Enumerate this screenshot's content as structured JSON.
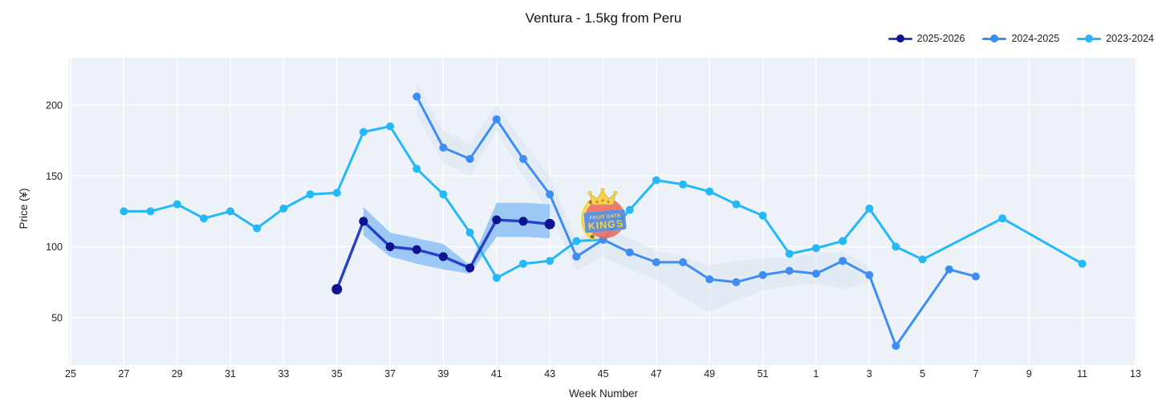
{
  "chart_data": {
    "type": "line",
    "title": "Ventura - 1.5kg from Peru",
    "xlabel": "Week Number",
    "ylabel": "Price (¥)",
    "x_tick_labels": [
      25,
      27,
      29,
      31,
      33,
      35,
      37,
      39,
      41,
      43,
      45,
      47,
      49,
      51,
      1,
      3,
      5,
      7,
      9,
      11,
      13
    ],
    "y_tick_labels": [
      50,
      100,
      150,
      200
    ],
    "week_axis_order": "weeks 25 to 52 then 1 to 13",
    "ylim": [
      16,
      233
    ],
    "grid": true,
    "legend_position": "top-right",
    "plot_bg": "#edf2f8",
    "grid_color": "#ffffff",
    "tick_color": "#222222",
    "series": [
      {
        "name": "2025-2026",
        "line_color": "#2441c8",
        "marker_color": "#10138f",
        "points": [
          [
            35,
            70
          ],
          [
            36,
            118
          ],
          [
            37,
            100
          ],
          [
            38,
            98
          ],
          [
            39,
            93
          ],
          [
            40,
            85
          ],
          [
            41,
            119
          ],
          [
            42,
            118
          ],
          [
            43,
            116
          ]
        ]
      },
      {
        "name": "2024-2025",
        "line_color": "#3e8df3",
        "marker_color": "#3e8df3",
        "points": [
          [
            38,
            206
          ],
          [
            39,
            170
          ],
          [
            40,
            162
          ],
          [
            41,
            190
          ],
          [
            42,
            162
          ],
          [
            43,
            137
          ],
          [
            44,
            93
          ],
          [
            45,
            105
          ],
          [
            46,
            96
          ],
          [
            47,
            89
          ],
          [
            48,
            89
          ],
          [
            49,
            77
          ],
          [
            50,
            75
          ],
          [
            51,
            80
          ],
          [
            52,
            83
          ],
          [
            1,
            81
          ],
          [
            2,
            90
          ],
          [
            3,
            80
          ],
          [
            4,
            30
          ],
          [
            6,
            84
          ],
          [
            7,
            79
          ]
        ]
      },
      {
        "name": "2023-2024",
        "line_color": "#25b8f6",
        "marker_color": "#25b8f6",
        "points": [
          [
            27,
            125
          ],
          [
            28,
            125
          ],
          [
            29,
            130
          ],
          [
            30,
            120
          ],
          [
            31,
            125
          ],
          [
            32,
            113
          ],
          [
            33,
            127
          ],
          [
            34,
            137
          ],
          [
            35,
            138
          ],
          [
            36,
            181
          ],
          [
            37,
            185
          ],
          [
            38,
            155
          ],
          [
            39,
            137
          ],
          [
            40,
            110
          ],
          [
            41,
            78
          ],
          [
            42,
            88
          ],
          [
            43,
            90
          ],
          [
            44,
            104
          ],
          [
            45,
            105
          ],
          [
            46,
            126
          ],
          [
            47,
            147
          ],
          [
            48,
            144
          ],
          [
            49,
            139
          ],
          [
            50,
            130
          ],
          [
            51,
            122
          ],
          [
            52,
            95
          ],
          [
            1,
            99
          ],
          [
            2,
            104
          ],
          [
            3,
            127
          ],
          [
            4,
            100
          ],
          [
            5,
            91
          ],
          [
            8,
            120
          ],
          [
            11,
            88
          ]
        ]
      }
    ],
    "bands": [
      {
        "name": "2024-2025 range band",
        "color": "#d8e5f0",
        "opacity": 0.55,
        "upper": [
          [
            38,
            216
          ],
          [
            39,
            182
          ],
          [
            40,
            173
          ],
          [
            41,
            200
          ],
          [
            42,
            174
          ],
          [
            43,
            150
          ],
          [
            44,
            105
          ],
          [
            45,
            116
          ],
          [
            46,
            106
          ],
          [
            47,
            97
          ],
          [
            48,
            93
          ],
          [
            49,
            87
          ],
          [
            50,
            90
          ],
          [
            51,
            92
          ],
          [
            52,
            92
          ],
          [
            1,
            96
          ],
          [
            2,
            96
          ],
          [
            3,
            86
          ]
        ],
        "lower": [
          [
            38,
            193
          ],
          [
            39,
            159
          ],
          [
            40,
            150
          ],
          [
            41,
            182
          ],
          [
            42,
            150
          ],
          [
            43,
            123
          ],
          [
            44,
            83
          ],
          [
            45,
            93
          ],
          [
            46,
            84
          ],
          [
            47,
            77
          ],
          [
            48,
            64
          ],
          [
            49,
            54
          ],
          [
            50,
            62
          ],
          [
            51,
            69
          ],
          [
            52,
            72
          ],
          [
            1,
            74
          ],
          [
            2,
            70
          ],
          [
            3,
            75
          ]
        ]
      },
      {
        "name": "2025-2026 forecast band",
        "color": "#92c3f5",
        "opacity": 0.9,
        "upper": [
          [
            36,
            128
          ],
          [
            37,
            110
          ],
          [
            38,
            106
          ],
          [
            39,
            102
          ],
          [
            40,
            87
          ],
          [
            41,
            131
          ],
          [
            42,
            131
          ],
          [
            43,
            130
          ]
        ],
        "lower": [
          [
            36,
            108
          ],
          [
            37,
            93
          ],
          [
            38,
            88
          ],
          [
            39,
            84
          ],
          [
            40,
            81
          ],
          [
            41,
            107
          ],
          [
            42,
            107
          ],
          [
            43,
            106
          ]
        ]
      }
    ],
    "watermark": {
      "line1": "FRUIT DATA",
      "line2": "KINGS"
    }
  }
}
